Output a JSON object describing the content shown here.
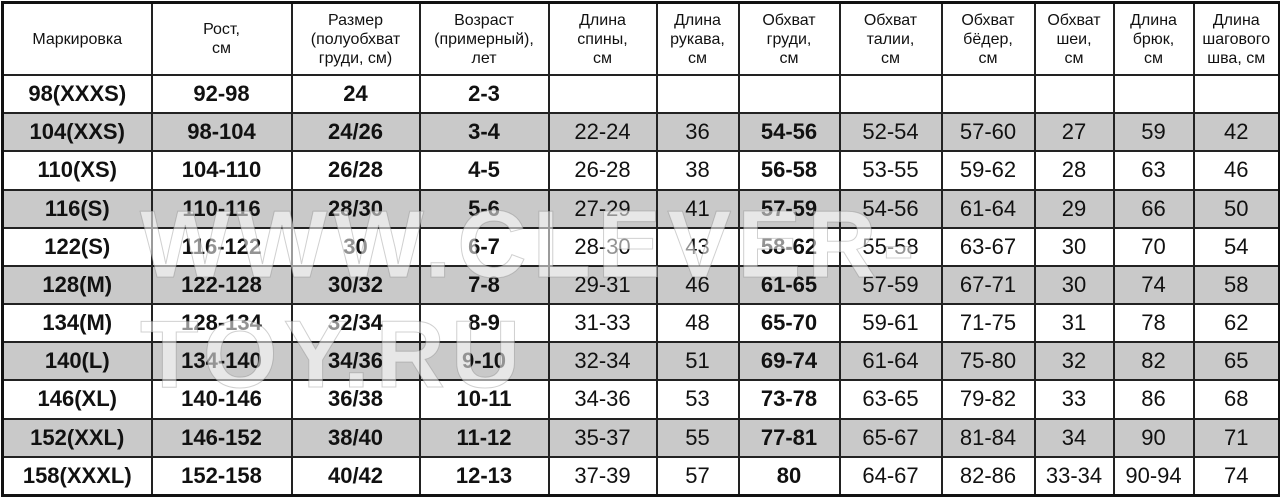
{
  "headers": [
    "Маркировка",
    "Рост,\nсм",
    "Размер\n(полуобхват\nгруди, см)",
    "Возраст\n(примерный),\nлет",
    "Длина\nспины,\nсм",
    "Длина\nрукава,\nсм",
    "Обхват\nгруди,\nсм",
    "Обхват\nталии,\nсм",
    "Обхват\nбёдер,\nсм",
    "Обхват\nшеи,\nсм",
    "Длина\nбрюк,\nсм",
    "Длина\nшагового\nшва, см"
  ],
  "rows": [
    [
      "98(XXXS)",
      "92-98",
      "24",
      "2-3",
      "",
      "",
      "",
      "",
      "",
      "",
      "",
      ""
    ],
    [
      "104(XXS)",
      "98-104",
      "24/26",
      "3-4",
      "22-24",
      "36",
      "54-56",
      "52-54",
      "57-60",
      "27",
      "59",
      "42"
    ],
    [
      "110(XS)",
      "104-110",
      "26/28",
      "4-5",
      "26-28",
      "38",
      "56-58",
      "53-55",
      "59-62",
      "28",
      "63",
      "46"
    ],
    [
      "116(S)",
      "110-116",
      "28/30",
      "5-6",
      "27-29",
      "41",
      "57-59",
      "54-56",
      "61-64",
      "29",
      "66",
      "50"
    ],
    [
      "122(S)",
      "116-122",
      "30",
      "6-7",
      "28-30",
      "43",
      "58-62",
      "55-58",
      "63-67",
      "30",
      "70",
      "54"
    ],
    [
      "128(M)",
      "122-128",
      "30/32",
      "7-8",
      "29-31",
      "46",
      "61-65",
      "57-59",
      "67-71",
      "30",
      "74",
      "58"
    ],
    [
      "134(M)",
      "128-134",
      "32/34",
      "8-9",
      "31-33",
      "48",
      "65-70",
      "59-61",
      "71-75",
      "31",
      "78",
      "62"
    ],
    [
      "140(L)",
      "134-140",
      "34/36",
      "9-10",
      "32-34",
      "51",
      "69-74",
      "61-64",
      "75-80",
      "32",
      "82",
      "65"
    ],
    [
      "146(XL)",
      "140-146",
      "36/38",
      "10-11",
      "34-36",
      "53",
      "73-78",
      "63-65",
      "79-82",
      "33",
      "86",
      "68"
    ],
    [
      "152(XXL)",
      "146-152",
      "38/40",
      "11-12",
      "35-37",
      "55",
      "77-81",
      "65-67",
      "81-84",
      "34",
      "90",
      "71"
    ],
    [
      "158(XXXL)",
      "152-158",
      "40/42",
      "12-13",
      "37-39",
      "57",
      "80",
      "64-67",
      "82-86",
      "33-34",
      "90-94",
      "74"
    ]
  ],
  "watermark": "WWW.CLEVER-TOY.RU",
  "colors": {
    "stripe": "#c9c9c9",
    "border": "#222222"
  }
}
